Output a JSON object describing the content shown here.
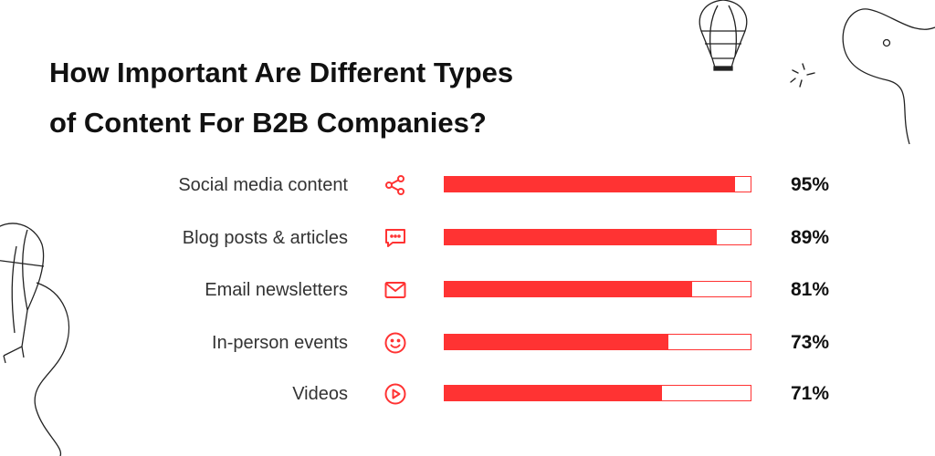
{
  "title_line1": "How Important Are Different Types",
  "title_line2": "of Content For B2B Companies?",
  "chart_data": {
    "type": "bar",
    "orientation": "horizontal",
    "title": "How Important Are Different Types of Content For B2B Companies?",
    "categories": [
      "Social media content",
      "Blog posts & articles",
      "Email newsletters",
      "In-person events",
      "Videos"
    ],
    "values": [
      95,
      89,
      81,
      73,
      71
    ],
    "value_labels": [
      "95%",
      "89%",
      "81%",
      "73%",
      "71%"
    ],
    "xlim": [
      0,
      100
    ],
    "unit": "%",
    "grid": false,
    "legend": "none",
    "colors": {
      "bar": "#ff3333",
      "track": "#ffffff"
    }
  },
  "icons": [
    "share-icon",
    "chat-bubble-icon",
    "mail-icon",
    "smiley-icon",
    "play-icon"
  ]
}
